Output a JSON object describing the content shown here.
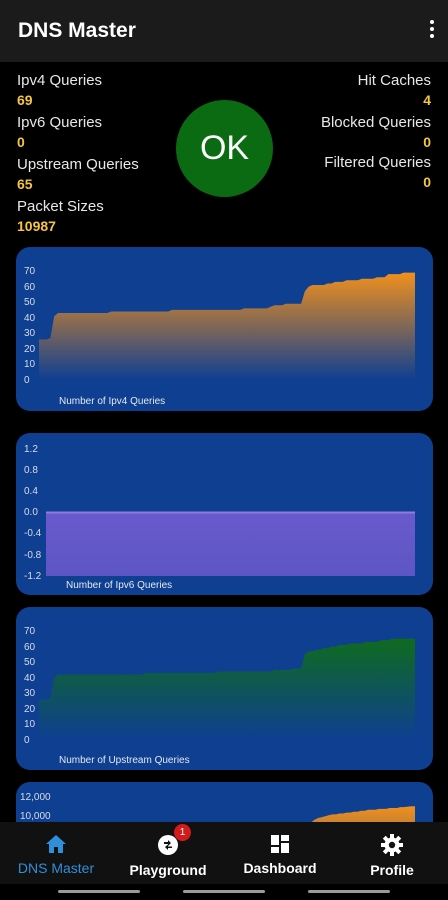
{
  "app": {
    "title": "DNS Master"
  },
  "stats": {
    "ipv4": {
      "label": "Ipv4 Queries",
      "value": "69"
    },
    "ipv6": {
      "label": "Ipv6 Queries",
      "value": "0"
    },
    "upstream": {
      "label": "Upstream Queries",
      "value": "65"
    },
    "packet": {
      "label": "Packet Sizes",
      "value": "10987"
    },
    "hit": {
      "label": "Hit Caches",
      "value": "4"
    },
    "blocked": {
      "label": "Blocked Queries",
      "value": "0"
    },
    "filtered": {
      "label": "Filtered Queries",
      "value": "0"
    }
  },
  "status": {
    "label": "OK",
    "color": "#0b6b12"
  },
  "chart_data": [
    {
      "type": "area",
      "xlabel": "Number of Ipv4 Queries",
      "ylim": [
        0,
        70
      ],
      "yticks": [
        "70",
        "60",
        "50",
        "40",
        "30",
        "20",
        "10",
        "0"
      ],
      "color": "#f0901c",
      "values": [
        26,
        26,
        26,
        27,
        41,
        43,
        43,
        43,
        43,
        43,
        43,
        43,
        43,
        43,
        43,
        43,
        43,
        43,
        43,
        44,
        44,
        44,
        44,
        44,
        44,
        44,
        44,
        44,
        44,
        44,
        44,
        44,
        44,
        44,
        44,
        45,
        45,
        45,
        45,
        45,
        45,
        45,
        45,
        45,
        45,
        45,
        45,
        45,
        45,
        45,
        45,
        45,
        45,
        45,
        46,
        46,
        46,
        46,
        46,
        46,
        46,
        47,
        48,
        48,
        48,
        49,
        49,
        49,
        49,
        49,
        57,
        60,
        61,
        61,
        61,
        61,
        62,
        62,
        63,
        63,
        63,
        64,
        64,
        64,
        64,
        65,
        65,
        65,
        65,
        66,
        66,
        66,
        68,
        68,
        68,
        68,
        69,
        69,
        69,
        69
      ]
    },
    {
      "type": "area",
      "xlabel": "Number of Ipv6 Queries",
      "ylim": [
        -1.2,
        1.2
      ],
      "yticks": [
        "1.2",
        "0.8",
        "0.4",
        "0.0",
        "-0.4",
        "-0.8",
        "-1.2"
      ],
      "color": "#6a5acd",
      "values": [
        0,
        0
      ]
    },
    {
      "type": "area",
      "xlabel": "Number of Upstream Queries",
      "ylim": [
        0,
        70
      ],
      "yticks": [
        "70",
        "60",
        "50",
        "40",
        "30",
        "20",
        "10",
        "0"
      ],
      "color": "#0f6b1e",
      "values": [
        26,
        26,
        26,
        27,
        40,
        42,
        42,
        42,
        42,
        42,
        42,
        42,
        42,
        42,
        42,
        42,
        42,
        42,
        42,
        42,
        42,
        42,
        42,
        42,
        42,
        42,
        42,
        42,
        43,
        43,
        43,
        43,
        43,
        43,
        43,
        43,
        43,
        43,
        43,
        43,
        43,
        43,
        43,
        43,
        43,
        43,
        43,
        44,
        44,
        44,
        44,
        44,
        44,
        44,
        44,
        44,
        44,
        44,
        44,
        44,
        44,
        44,
        45,
        45,
        45,
        45,
        45,
        46,
        46,
        46,
        55,
        57,
        57,
        58,
        58,
        59,
        59,
        60,
        60,
        61,
        61,
        61,
        62,
        62,
        62,
        62,
        63,
        63,
        63,
        63,
        64,
        64,
        64,
        65,
        65,
        65,
        65,
        65,
        65,
        65
      ]
    },
    {
      "type": "area",
      "xlabel": "",
      "ylim": [
        0,
        12000
      ],
      "yticks": [
        "12,000",
        "10,000"
      ],
      "color": "#f0901c",
      "values": [
        4200,
        4200,
        4200,
        4300,
        6400,
        6600,
        6600,
        6600,
        6600,
        6600,
        6600,
        6600,
        6700,
        6700,
        6700,
        6700,
        6800,
        6800,
        6800,
        6800,
        6800,
        6900,
        6900,
        6900,
        6900,
        6900,
        7000,
        7000,
        7000,
        7000,
        7000,
        7100,
        7100,
        7100,
        7100,
        7100,
        7200,
        7200,
        7200,
        7200,
        7200,
        7300,
        7300,
        7300,
        7300,
        7400,
        7400,
        7400,
        7400,
        7500,
        7500,
        7500,
        7500,
        7500,
        7600,
        7600,
        7600,
        7700,
        7700,
        7700,
        7800,
        7800,
        7900,
        7900,
        8000,
        8000,
        8100,
        8100,
        8200,
        8200,
        9200,
        9500,
        9700,
        9800,
        9900,
        10000,
        10100,
        10100,
        10200,
        10200,
        10300,
        10300,
        10400,
        10400,
        10500,
        10500,
        10600,
        10600,
        10600,
        10700,
        10700,
        10700,
        10800,
        10800,
        10800,
        10900,
        10900,
        10950,
        10987,
        10987
      ]
    }
  ],
  "nav": {
    "items": [
      {
        "label": "DNS Master",
        "icon": "home-icon"
      },
      {
        "label": "Playground",
        "icon": "playground-icon",
        "badge": "1"
      },
      {
        "label": "Dashboard",
        "icon": "dashboard-icon"
      },
      {
        "label": "Profile",
        "icon": "gear-icon"
      }
    ],
    "active_color": "#2f8fda"
  }
}
